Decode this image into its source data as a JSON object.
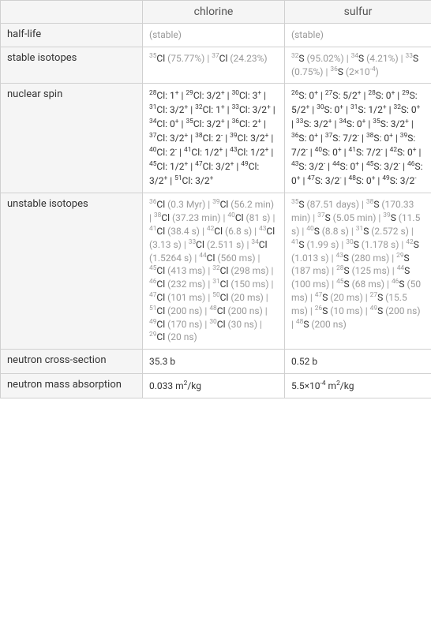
{
  "headers": {
    "chlorine": "chlorine",
    "sulfur": "sulfur"
  },
  "rows": {
    "half_life": {
      "label": "half-life",
      "chlorine": "(stable)",
      "sulfur": "(stable)"
    },
    "stable_isotopes": {
      "label": "stable isotopes"
    },
    "nuclear_spin": {
      "label": "nuclear spin"
    },
    "unstable_isotopes": {
      "label": "unstable isotopes"
    },
    "neutron_cross": {
      "label": "neutron cross-section",
      "chlorine": "35.3 b",
      "sulfur": "0.52 b"
    },
    "neutron_mass": {
      "label": "neutron mass absorption"
    }
  },
  "stable_cl": {
    "cl35": "Cl",
    "cl35_pct": " (75.77%)  |  ",
    "cl37": "Cl",
    "cl37_pct": " (24.23%)"
  },
  "stable_s": {
    "s32": "S",
    "s32_pct": " (95.02%)  |  ",
    "s34": "S",
    "s34_pct": " (4.21%)  |  ",
    "s33": "S",
    "s33_pct": " (0.75%)  |  ",
    "s36": "S",
    "s36_pct": " (2×10"
  },
  "colors": {
    "border": "#d0d0d0",
    "header_bg": "#f5f5f5",
    "text_dark": "#333333",
    "text_light": "#999999"
  }
}
